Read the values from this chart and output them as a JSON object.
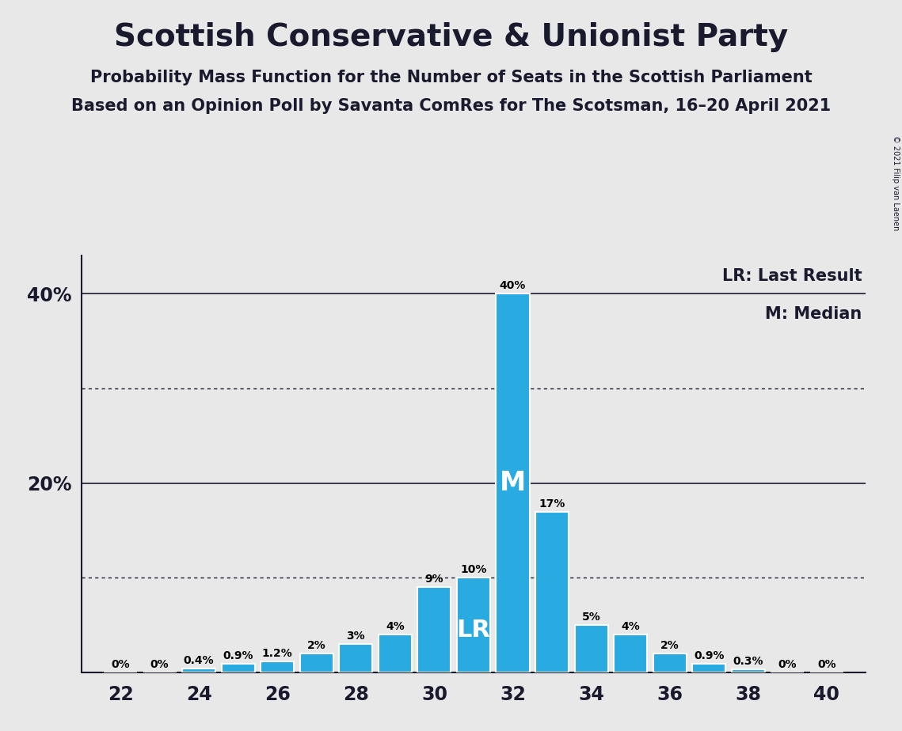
{
  "title": "Scottish Conservative & Unionist Party",
  "subtitle1": "Probability Mass Function for the Number of Seats in the Scottish Parliament",
  "subtitle2": "Based on an Opinion Poll by Savanta ComRes for The Scotsman, 16–20 April 2021",
  "copyright": "© 2021 Filip van Laenen",
  "legend_lr": "LR: Last Result",
  "legend_m": "M: Median",
  "seats": [
    22,
    23,
    24,
    25,
    26,
    27,
    28,
    29,
    30,
    31,
    32,
    33,
    34,
    35,
    36,
    37,
    38,
    39,
    40
  ],
  "probabilities": [
    0.0,
    0.0,
    0.4,
    0.9,
    1.2,
    2.0,
    3.0,
    4.0,
    9.0,
    10.0,
    40.0,
    17.0,
    5.0,
    4.0,
    2.0,
    0.9,
    0.3,
    0.0,
    0.0
  ],
  "labels": [
    "0%",
    "0%",
    "0.4%",
    "0.9%",
    "1.2%",
    "2%",
    "3%",
    "4%",
    "9%",
    "10%",
    "40%",
    "17%",
    "5%",
    "4%",
    "2%",
    "0.9%",
    "0.3%",
    "0%",
    "0%"
  ],
  "bar_color": "#29ABE2",
  "background_color": "#E8E8E8",
  "median_seat": 32,
  "lr_seat": 31,
  "xlim": [
    21.0,
    41.0
  ],
  "ylim": [
    0,
    44
  ],
  "yticks": [
    20,
    40
  ],
  "ytick_labels": [
    "20%",
    "40%"
  ],
  "xticks": [
    22,
    24,
    26,
    28,
    30,
    32,
    34,
    36,
    38,
    40
  ],
  "dotted_lines": [
    10,
    30
  ],
  "solid_lines": [
    20,
    40
  ],
  "title_fontsize": 28,
  "subtitle_fontsize": 15,
  "bar_label_fontsize": 10,
  "tick_fontsize": 17,
  "legend_fontsize": 15,
  "M_fontsize": 24,
  "LR_fontsize": 22
}
